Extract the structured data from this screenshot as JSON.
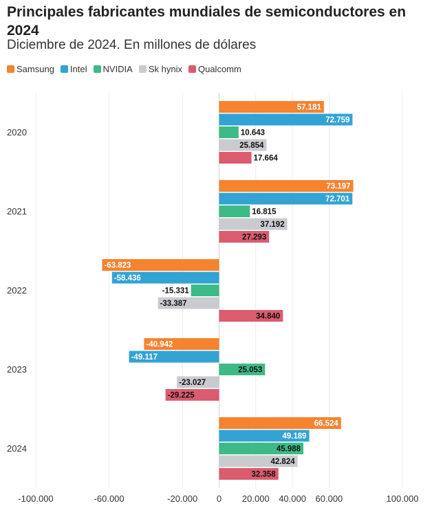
{
  "chart_data": {
    "type": "bar",
    "orientation": "horizontal",
    "title": "Principales fabricantes mundiales de semiconductores en 2024",
    "subtitle": "Diciembre de 2024. En millones de dólares",
    "categories": [
      "2020",
      "2021",
      "2022",
      "2023",
      "2024"
    ],
    "series": [
      {
        "name": "Samsung",
        "color": "#f5832f",
        "label_color": "#ffffff",
        "values": [
          57181,
          73197,
          -63823,
          -40942,
          66524
        ],
        "labels": [
          "57.181",
          "73.197",
          "-63.823",
          "-40.942",
          "66.524"
        ]
      },
      {
        "name": "Intel",
        "color": "#33a3d4",
        "label_color": "#ffffff",
        "values": [
          72759,
          72701,
          -58436,
          -49117,
          49189
        ],
        "labels": [
          "72.759",
          "72.701",
          "-58.436",
          "-49.117",
          "49.189"
        ]
      },
      {
        "name": "NVIDIA",
        "color": "#3dba87",
        "label_color": "#111111",
        "values": [
          10643,
          16815,
          -15331,
          25053,
          45988
        ],
        "labels": [
          "10.643",
          "16.815",
          "-15.331",
          "25.053",
          "45.988"
        ]
      },
      {
        "name": "Sk hynix",
        "color": "#c9cbcf",
        "label_color": "#111111",
        "values": [
          25854,
          37192,
          -33387,
          -23027,
          42824
        ],
        "labels": [
          "25.854",
          "37.192",
          "-33.387",
          "-23.027",
          "42.824"
        ]
      },
      {
        "name": "Qualcomm",
        "color": "#db5b6f",
        "label_color": "#111111",
        "values": [
          17664,
          27293,
          34840,
          -29225,
          32358
        ],
        "labels": [
          "17.664",
          "27.293",
          "34.840",
          "-29.225",
          "32.358"
        ]
      }
    ],
    "xlim": [
      -100000,
      100000
    ],
    "x_ticks": [
      {
        "value": -100000,
        "label": "-100.000"
      },
      {
        "value": -60000,
        "label": "-60.000"
      },
      {
        "value": -20000,
        "label": "-20.000"
      },
      {
        "value": 0,
        "label": "0"
      },
      {
        "value": 20000,
        "label": "20.000"
      },
      {
        "value": 40000,
        "label": "40.000"
      },
      {
        "value": 60000,
        "label": "60.000"
      },
      {
        "value": 100000,
        "label": "100.000"
      }
    ],
    "grid": true,
    "legend_position": "top-left"
  }
}
